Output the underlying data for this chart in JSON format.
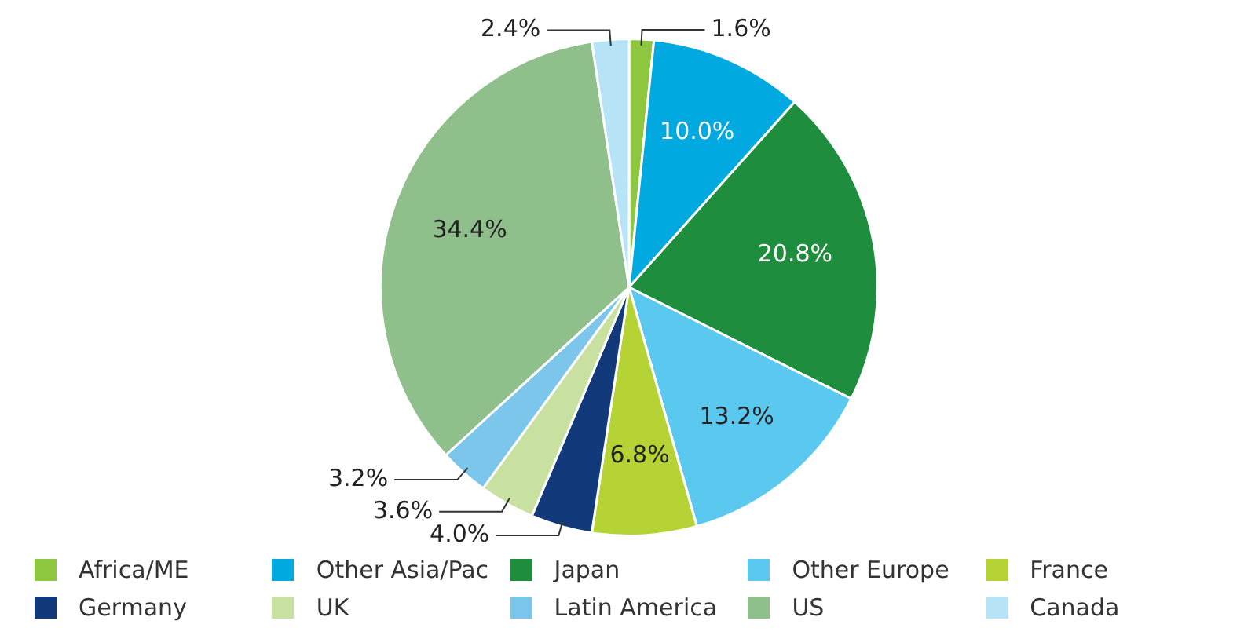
{
  "chart_data": {
    "type": "pie",
    "categories": [
      "Africa/ME",
      "Other Asia/Pac",
      "Japan",
      "Other Europe",
      "France",
      "Germany",
      "UK",
      "Latin America",
      "US",
      "Canada"
    ],
    "values": [
      1.6,
      10.0,
      20.8,
      13.2,
      6.8,
      4.0,
      3.6,
      3.2,
      34.4,
      2.4
    ],
    "colors": [
      "#8dc63f",
      "#00a9e0",
      "#1e8e3e",
      "#5bc8f0",
      "#b5d334",
      "#123a7a",
      "#c8e0a0",
      "#7cc6ec",
      "#8fbf8a",
      "#b7e3f7"
    ],
    "value_labels": [
      "1.6%",
      "10.0%",
      "20.8%",
      "13.2%",
      "6.8%",
      "4.0%",
      "3.6%",
      "3.2%",
      "34.4%",
      "2.4%"
    ],
    "legend": "bottom"
  }
}
